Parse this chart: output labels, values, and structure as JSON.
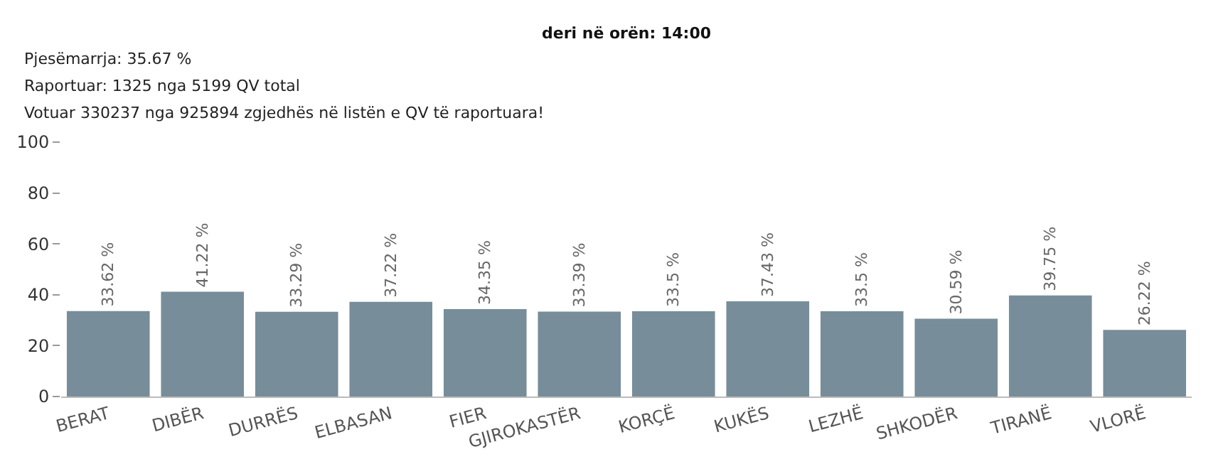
{
  "chart_data": {
    "type": "bar",
    "subtitle": "deri në orën: 14:00",
    "annotations": [
      "Pjesëmarrja: 35.67 %",
      "Raportuar: 1325 nga 5199 QV total",
      "Votuar 330237 nga 925894 zgjedhës në listën e QV të raportuara!"
    ],
    "categories": [
      "BERAT",
      "DIBËR",
      "DURRËS",
      "ELBASAN",
      "FIER",
      "GJIROKASTËR",
      "KORÇË",
      "KUKËS",
      "LEZHË",
      "SHKODËR",
      "TIRANË",
      "VLORË"
    ],
    "values": [
      33.62,
      41.22,
      33.29,
      37.22,
      34.35,
      33.39,
      33.5,
      37.43,
      33.5,
      30.59,
      39.75,
      26.22
    ],
    "value_labels": [
      "33.62 %",
      "41.22 %",
      "33.29 %",
      "37.22 %",
      "34.35 %",
      "33.39 %",
      "33.5 %",
      "37.43 %",
      "33.5 %",
      "30.59 %",
      "39.75 %",
      "26.22 %"
    ],
    "color": "#778d9a",
    "ylim": [
      0,
      100
    ],
    "yticks": [
      0,
      20,
      40,
      60,
      80,
      100
    ],
    "legend": false
  }
}
